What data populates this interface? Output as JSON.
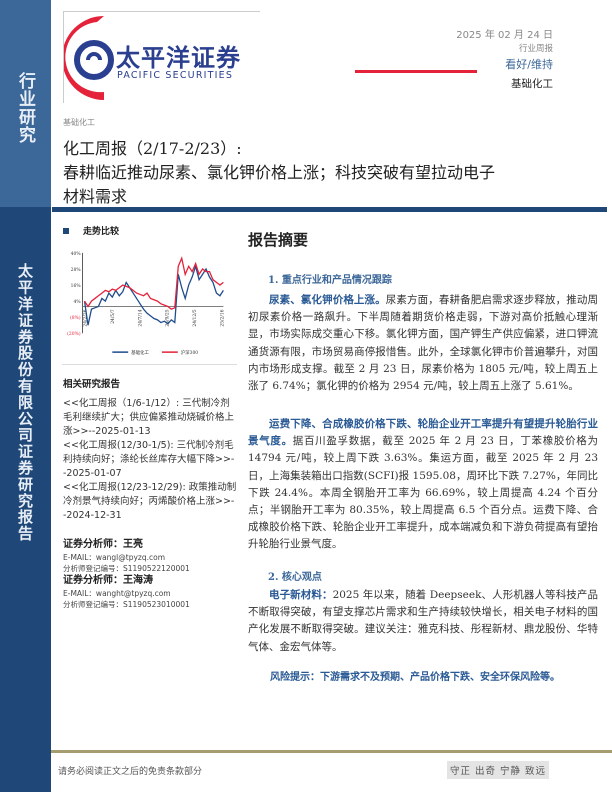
{
  "sidebar": {
    "top_label": "行业研究",
    "bottom_label": "太平洋证券股份有限公司证券研究报告"
  },
  "logo": {
    "cn": "太平洋证券",
    "en": "PACIFIC SECURITIES"
  },
  "header": {
    "date": "2025 年 02 月 24 日",
    "report_type": "行业周报",
    "rating": "看好/维持",
    "industry": "基础化工"
  },
  "category": "基础化工",
  "title": {
    "line1": "化工周报（2/17-2/23）:",
    "line2": "春耕临近推动尿素、氯化钾价格上涨；科技突破有望拉动电子材料需求"
  },
  "trend": {
    "heading": "走势比较"
  },
  "chart_data": {
    "type": "line",
    "yticks": [
      "40%",
      "28%",
      "16%",
      "4%",
      "(8%)",
      "(20%)"
    ],
    "ylim": [
      -20,
      40
    ],
    "xticks": [
      "24/2/26",
      "24/5/7",
      "24/7/14",
      "24/9/25",
      "24/12/5",
      "25/2/16"
    ],
    "series": [
      {
        "name": "基础化工",
        "color": "#1f4d8c",
        "values": [
          4,
          -14,
          -2,
          -1,
          0,
          6,
          4,
          10,
          7,
          12,
          8,
          11,
          18,
          14,
          10,
          6,
          2,
          -2,
          -5,
          -7,
          -9,
          -10,
          -12,
          -11,
          -13,
          -10,
          -12,
          24,
          14,
          6,
          16,
          22,
          30,
          20,
          24,
          28,
          22,
          18,
          10,
          8,
          12
        ]
      },
      {
        "name": "沪深300",
        "color": "#e4223a",
        "values": [
          4,
          0,
          4,
          6,
          8,
          10,
          12,
          11,
          13,
          12,
          14,
          16,
          15,
          14,
          12,
          10,
          9,
          8,
          10,
          6,
          5,
          4,
          2,
          1,
          0,
          -2,
          -1,
          30,
          36,
          24,
          30,
          26,
          32,
          24,
          28,
          26,
          26,
          20,
          18,
          16,
          18
        ]
      }
    ]
  },
  "related": {
    "heading": "相关研究报告",
    "items": [
      "<<化工周报（1/6-1/12）: 三代制冷剂毛利继续扩大；供应偏紧推动烧碱价格上涨>>--2025-01-13",
      "<<化工周报(12/30-1/5): 三代制冷剂毛利持续向好；涤纶长丝库存大幅下降>>--2025-01-07",
      "<<化工周报(12/23-12/29): 政策推动制冷剂景气持续向好；丙烯酸价格上涨>>--2024-12-31"
    ]
  },
  "analysts": [
    {
      "title": "证券分析师：王亮",
      "email": "E-MAIL：wangl@tpyzq.com",
      "reg": "分析师登记编号：S1190522120001"
    },
    {
      "title": "证券分析师：王海涛",
      "email": "E-MAIL：wanght@tpyzq.com",
      "reg": "分析师登记编号：S1190523010001"
    }
  ],
  "summary": {
    "heading": "报告摘要",
    "sec1": "1. 重点行业和产品情况跟踪",
    "p1_lead": "尿素、氯化钾价格上涨。",
    "p1": "尿素方面，春耕备肥启需求逐步释放，推动周初尿素价格一路飙升。下半周随着期货价格走弱，下游对高价抵触心理渐显，市场实际成交重心下移。氯化钾方面，国产钾生产供应偏紧，进口钾流通货源有限，市场贸易商停报惜售。此外，全球氯化钾市价普遍攀升，对国内市场形成支撑。截至 2 月 23 日，尿素价格为 1805 元/吨，较上周五上涨了 6.74%；氯化钾的价格为 2954 元/吨，较上周五上涨了 5.61%。",
    "p2_lead": "运费下降、合成橡胶价格下跌、轮胎企业开工率提升有望提升轮胎行业景气度。",
    "p2": "据百川盈孚数据，截至 2025 年 2 月 23 日，丁苯橡胶价格为 14794 元/吨，较上周下跌 3.63%。集运方面，截至 2025 年 2 月 23 日，上海集装箱出口指数(SCFI)报 1595.08，周环比下跌 7.27%，年同比下跌 24.4%。本周全钢胎开工率为 66.69%，较上周提高 4.24 个百分点；半钢胎开工率为 80.35%，较上周提高 6.5 个百分点。运费下降、合成橡胶价格下跌、轮胎企业开工率提升，成本端减负和下游负荷提高有望抬升轮胎行业景气度。",
    "sec2": "2. 核心观点",
    "p3_lead": "电子新材料：",
    "p3": "2025 年以来，随着 Deepseek、人形机器人等科技产品不断取得突破，有望支撑芯片需求和生产持续较快增长，相关电子材料的国产化发展不断取得突破。建议关注：雅克科技、彤程新材、鼎龙股份、华特气体、金宏气体等。",
    "risk": "风险提示：下游需求不及预期、产品价格下跌、安全环保风险等。"
  },
  "footer": {
    "left": "请务必阅读正文之后的免责条款部分",
    "right": "守正 出奇 宁静 致远"
  }
}
